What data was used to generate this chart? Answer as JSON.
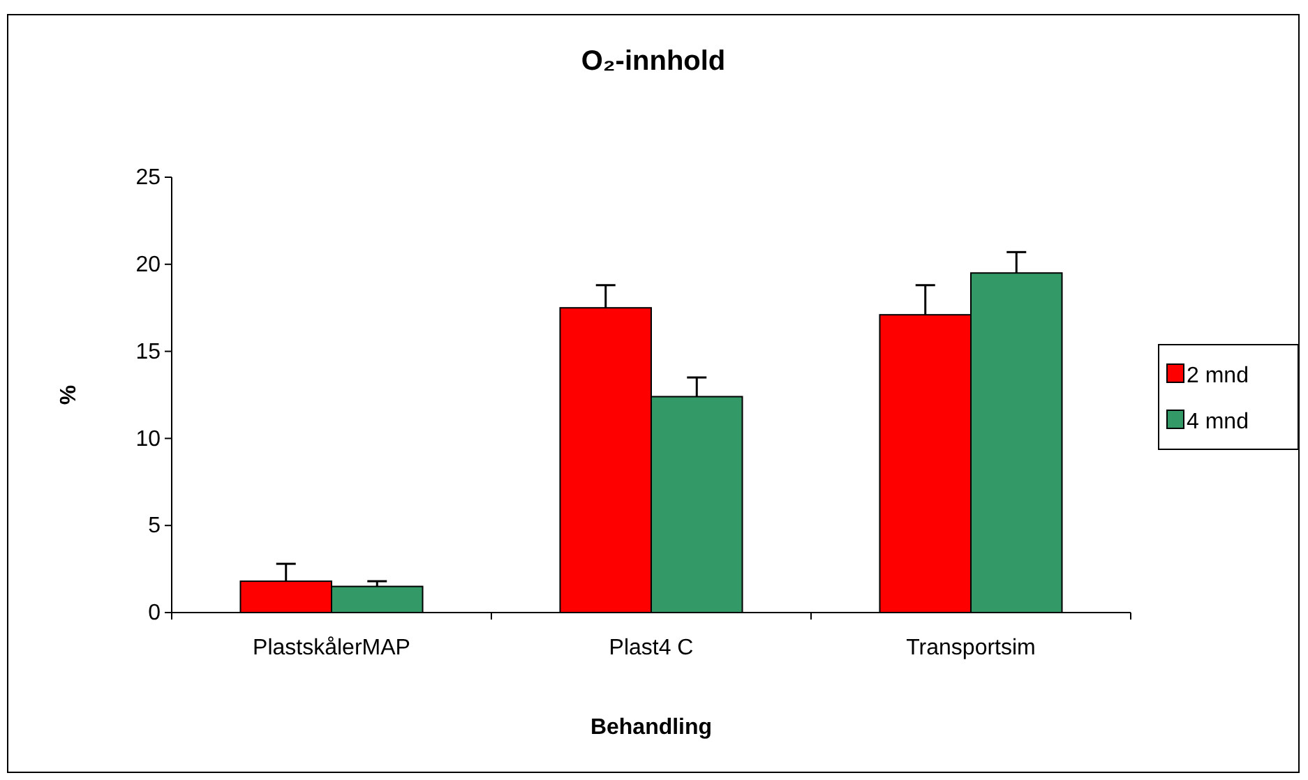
{
  "chart_data": {
    "type": "bar",
    "title": "O₂-innhold",
    "xlabel": "Behandling",
    "ylabel": "%",
    "categories": [
      "PlastskålerMAP",
      "Plast4 C",
      "Transportsim"
    ],
    "series": [
      {
        "name": "2 mnd",
        "color": "#ff0000",
        "values": [
          1.8,
          17.5,
          17.1
        ],
        "errors": [
          [
            1.8,
            2.8
          ],
          [
            17.5,
            18.8
          ],
          [
            17.1,
            18.8
          ]
        ]
      },
      {
        "name": "4 mnd",
        "color": "#339966",
        "values": [
          1.5,
          12.4,
          19.5
        ],
        "errors": [
          [
            1.5,
            1.8
          ],
          [
            12.4,
            13.5
          ],
          [
            19.5,
            20.7
          ]
        ]
      }
    ],
    "ylim": [
      0,
      25
    ],
    "yticks": [
      0,
      5,
      10,
      15,
      20,
      25
    ],
    "grid": false,
    "legend": "right"
  }
}
